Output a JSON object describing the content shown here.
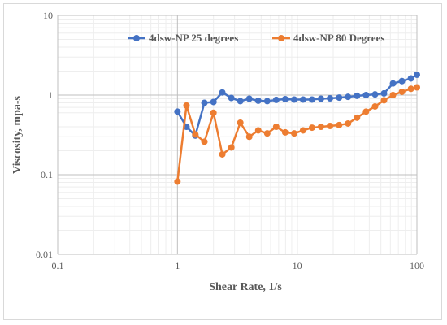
{
  "chart_data": {
    "type": "scatter",
    "x_scale": "log",
    "y_scale": "log",
    "xlabel": "Shear Rate, 1/s",
    "ylabel": "Viscosity, mpa-s",
    "xlim": [
      0.1,
      100
    ],
    "ylim": [
      0.01,
      10
    ],
    "x_ticks": [
      "0.1",
      "1",
      "10",
      "100"
    ],
    "y_ticks": [
      "0.01",
      "0.1",
      "1",
      "10"
    ],
    "grid": true,
    "minor_grid": true,
    "legend_position": "top-right",
    "series": [
      {
        "name": "4dsw-NP 25 degrees",
        "color": "#4472C4",
        "x": [
          1.0,
          1.19,
          1.41,
          1.68,
          2.0,
          2.37,
          2.82,
          3.35,
          3.98,
          4.73,
          5.62,
          6.68,
          7.94,
          9.44,
          11.2,
          13.3,
          15.8,
          18.8,
          22.4,
          26.6,
          31.6,
          37.6,
          44.7,
          53.1,
          63.1,
          75.0,
          89.1,
          100.0
        ],
        "y": [
          0.62,
          0.4,
          0.31,
          0.8,
          0.82,
          1.08,
          0.92,
          0.84,
          0.9,
          0.85,
          0.84,
          0.87,
          0.89,
          0.88,
          0.88,
          0.88,
          0.9,
          0.91,
          0.93,
          0.95,
          0.98,
          1.0,
          1.02,
          1.05,
          1.4,
          1.5,
          1.62,
          1.8
        ]
      },
      {
        "name": "4dsw-NP 80 Degrees",
        "color": "#ED7D31",
        "x": [
          1.0,
          1.19,
          1.41,
          1.68,
          2.0,
          2.37,
          2.82,
          3.35,
          3.98,
          4.73,
          5.62,
          6.68,
          7.94,
          9.44,
          11.2,
          13.3,
          15.8,
          18.8,
          22.4,
          26.6,
          31.6,
          37.6,
          44.7,
          53.1,
          63.1,
          75.0,
          89.1,
          100.0
        ],
        "y": [
          0.082,
          0.74,
          0.32,
          0.26,
          0.6,
          0.18,
          0.22,
          0.45,
          0.3,
          0.36,
          0.33,
          0.4,
          0.34,
          0.33,
          0.36,
          0.39,
          0.4,
          0.41,
          0.42,
          0.44,
          0.52,
          0.62,
          0.72,
          0.86,
          1.0,
          1.1,
          1.2,
          1.25
        ]
      }
    ]
  }
}
